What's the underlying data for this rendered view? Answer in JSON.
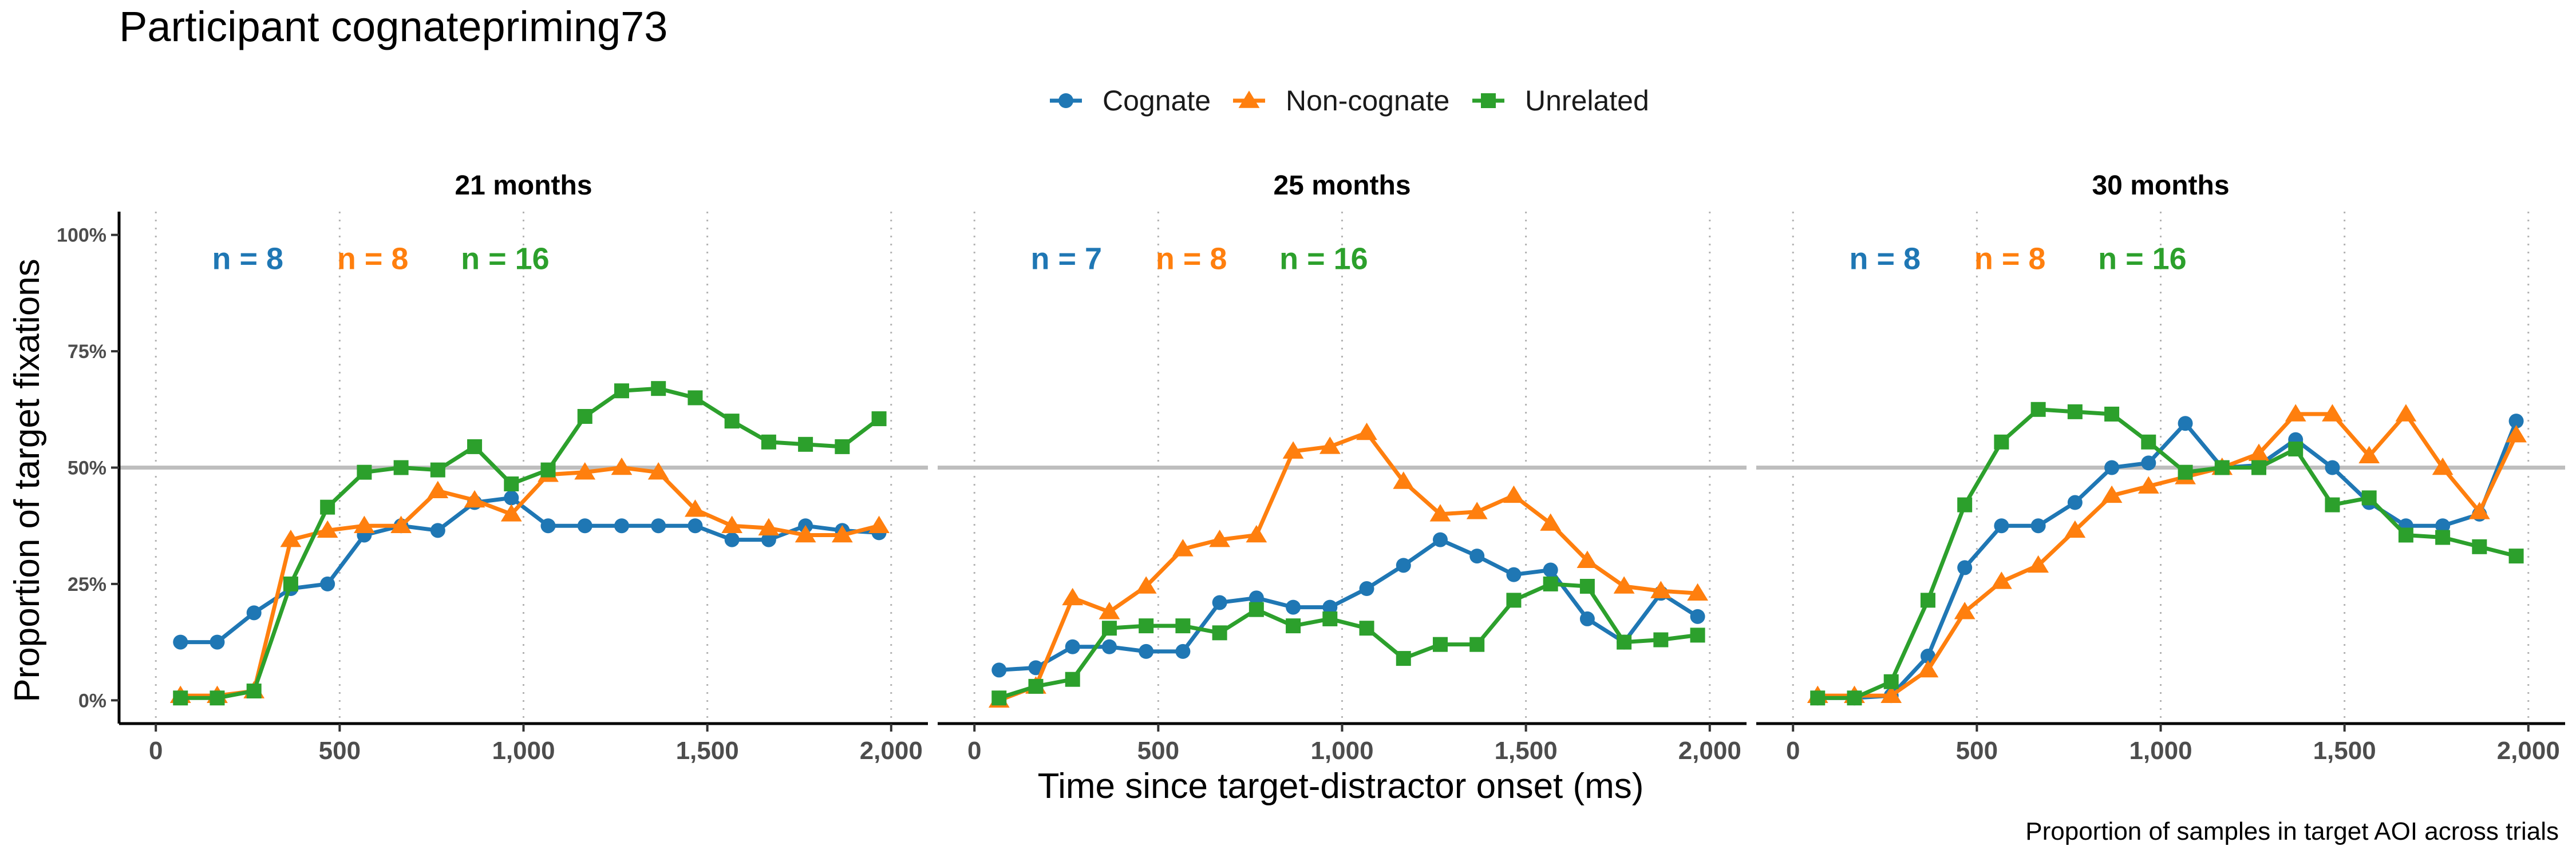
{
  "chart_data": {
    "type": "line",
    "title": "Participant cognatepriming73",
    "xlabel": "Time since target-distractor onset (ms)",
    "ylabel": "Proportion of target fixations",
    "caption": "Proportion of samples in target AOI across trials",
    "xlim": [
      -100,
      2100
    ],
    "ylim": [
      -0.05,
      1.05
    ],
    "x_ticks": [
      0,
      500,
      1000,
      1500,
      2000
    ],
    "x_tick_labels": [
      "0",
      "500",
      "1,000",
      "1,500",
      "2,000"
    ],
    "y_ticks": [
      0,
      0.25,
      0.5,
      0.75,
      1
    ],
    "y_tick_labels": [
      "0%",
      "25%",
      "50%",
      "75%",
      "100%"
    ],
    "reference_line_y": 0.5,
    "grid": "vertical dotted lines at x ticks",
    "legend_position": "top",
    "legend": [
      {
        "name": "Cognate",
        "color": "#1f77b4",
        "marker": "circle"
      },
      {
        "name": "Non-cognate",
        "color": "#ff7f0e",
        "marker": "triangle"
      },
      {
        "name": "Unrelated",
        "color": "#2ca02c",
        "marker": "square"
      }
    ],
    "x": [
      67,
      167,
      267,
      367,
      467,
      567,
      667,
      767,
      867,
      967,
      1067,
      1167,
      1267,
      1367,
      1467,
      1567,
      1667,
      1767,
      1867,
      1967
    ],
    "panels": [
      {
        "strip": "21 months",
        "counts": [
          {
            "text": "n = 8",
            "x": 250,
            "color": "#1f77b4"
          },
          {
            "text": "n = 8",
            "x": 590,
            "color": "#ff7f0e"
          },
          {
            "text": "n = 16",
            "x": 950,
            "color": "#2ca02c"
          }
        ],
        "series": [
          {
            "name": "Cognate",
            "values": [
              0.125,
              0.125,
              0.188,
              0.24,
              0.25,
              0.355,
              0.375,
              0.365,
              0.425,
              0.435,
              0.375,
              0.375,
              0.375,
              0.375,
              0.375,
              0.345,
              0.345,
              0.375,
              0.365,
              0.36
            ]
          },
          {
            "name": "Non-cognate",
            "values": [
              0.01,
              0.01,
              0.02,
              0.345,
              0.365,
              0.375,
              0.375,
              0.45,
              0.43,
              0.4,
              0.485,
              0.49,
              0.5,
              0.49,
              0.41,
              0.375,
              0.37,
              0.355,
              0.355,
              0.375
            ]
          },
          {
            "name": "Unrelated",
            "values": [
              0.005,
              0.005,
              0.02,
              0.25,
              0.415,
              0.49,
              0.5,
              0.495,
              0.545,
              0.465,
              0.495,
              0.61,
              0.665,
              0.67,
              0.65,
              0.6,
              0.555,
              0.55,
              0.545,
              0.605
            ]
          }
        ]
      },
      {
        "strip": "25 months",
        "counts": [
          {
            "text": "n = 7",
            "x": 250,
            "color": "#1f77b4"
          },
          {
            "text": "n = 8",
            "x": 590,
            "color": "#ff7f0e"
          },
          {
            "text": "n = 16",
            "x": 950,
            "color": "#2ca02c"
          }
        ],
        "series": [
          {
            "name": "Cognate",
            "values": [
              0.065,
              0.07,
              0.115,
              0.115,
              0.105,
              0.105,
              0.21,
              0.22,
              0.2,
              0.2,
              0.24,
              0.29,
              0.345,
              0.31,
              0.27,
              0.28,
              0.175,
              0.125,
              0.23,
              0.18
            ]
          },
          {
            "name": "Non-cognate",
            "values": [
              0.0,
              0.03,
              0.22,
              0.19,
              0.245,
              0.325,
              0.345,
              0.355,
              0.535,
              0.545,
              0.575,
              0.47,
              0.4,
              0.405,
              0.44,
              0.38,
              0.3,
              0.245,
              0.235,
              0.23
            ]
          },
          {
            "name": "Unrelated",
            "values": [
              0.005,
              0.03,
              0.045,
              0.155,
              0.16,
              0.16,
              0.145,
              0.195,
              0.16,
              0.175,
              0.155,
              0.09,
              0.12,
              0.12,
              0.215,
              0.25,
              0.245,
              0.125,
              0.13,
              0.14
            ]
          }
        ]
      },
      {
        "strip": "30 months",
        "counts": [
          {
            "text": "n = 8",
            "x": 250,
            "color": "#1f77b4"
          },
          {
            "text": "n = 8",
            "x": 590,
            "color": "#ff7f0e"
          },
          {
            "text": "n = 16",
            "x": 950,
            "color": "#2ca02c"
          }
        ],
        "series": [
          {
            "name": "Cognate",
            "values": [
              0.005,
              0.005,
              0.01,
              0.095,
              0.285,
              0.375,
              0.375,
              0.425,
              0.5,
              0.51,
              0.595,
              0.5,
              0.505,
              0.56,
              0.5,
              0.425,
              0.375,
              0.375,
              0.4,
              0.6
            ]
          },
          {
            "name": "Non-cognate",
            "values": [
              0.01,
              0.01,
              0.01,
              0.065,
              0.19,
              0.255,
              0.29,
              0.365,
              0.44,
              0.46,
              0.48,
              0.5,
              0.53,
              0.615,
              0.615,
              0.525,
              0.615,
              0.5,
              0.405,
              0.57
            ]
          },
          {
            "name": "Unrelated",
            "values": [
              0.005,
              0.005,
              0.04,
              0.215,
              0.42,
              0.555,
              0.625,
              0.62,
              0.615,
              0.555,
              0.49,
              0.5,
              0.5,
              0.54,
              0.42,
              0.435,
              0.355,
              0.35,
              0.33,
              0.31
            ]
          }
        ]
      }
    ]
  }
}
